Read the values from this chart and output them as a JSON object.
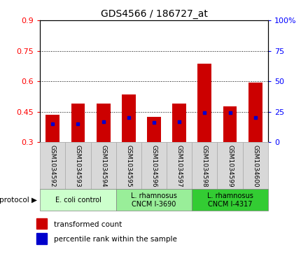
{
  "title": "GDS4566 / 186727_at",
  "samples": [
    "GSM1034592",
    "GSM1034593",
    "GSM1034594",
    "GSM1034595",
    "GSM1034596",
    "GSM1034597",
    "GSM1034598",
    "GSM1034599",
    "GSM1034600"
  ],
  "transformed_counts": [
    0.435,
    0.49,
    0.49,
    0.535,
    0.425,
    0.49,
    0.685,
    0.475,
    0.595
  ],
  "percentile_ranks": [
    15,
    15,
    17,
    20,
    16,
    17,
    24,
    24,
    20
  ],
  "bar_base": 0.3,
  "ylim_left": [
    0.3,
    0.9
  ],
  "ylim_right": [
    0,
    100
  ],
  "yticks_left": [
    0.3,
    0.45,
    0.6,
    0.75,
    0.9
  ],
  "yticks_right": [
    0,
    25,
    50,
    75,
    100
  ],
  "bar_color": "#cc0000",
  "percentile_color": "#0000cc",
  "protocol_groups": [
    {
      "label": "E. coli control",
      "indices": [
        0,
        1,
        2
      ],
      "color": "#ccffcc"
    },
    {
      "label": "L. rhamnosus\nCNCM I-3690",
      "indices": [
        3,
        4,
        5
      ],
      "color": "#99ee99"
    },
    {
      "label": "L. rhamnosus\nCNCM I-4317",
      "indices": [
        6,
        7,
        8
      ],
      "color": "#33cc33"
    }
  ],
  "legend_items": [
    {
      "label": "transformed count",
      "color": "#cc0000"
    },
    {
      "label": "percentile rank within the sample",
      "color": "#0000cc"
    }
  ],
  "bar_width": 0.55,
  "cell_color": "#d8d8d8",
  "cell_edge_color": "#aaaaaa"
}
